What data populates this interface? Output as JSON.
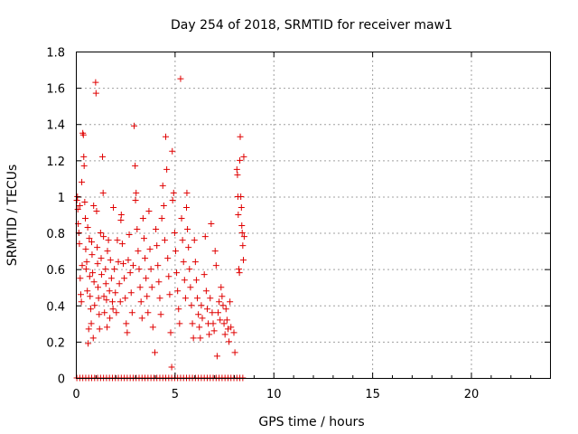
{
  "chart_data": {
    "type": "scatter",
    "title": "Day 254 of 2018, SRMTID for receiver maw1",
    "xlabel": "GPS time / hours",
    "ylabel": "SRMTID / TECUs",
    "xlim": [
      0,
      24
    ],
    "ylim": [
      0,
      1.8
    ],
    "x_ticks": [
      0,
      5,
      10,
      15,
      20
    ],
    "y_ticks": [
      0,
      0.2,
      0.4,
      0.6,
      0.8,
      1,
      1.2,
      1.4,
      1.6,
      1.8
    ],
    "x_tick_labels": [
      "0",
      "5",
      "10",
      "15",
      "20"
    ],
    "y_tick_labels": [
      "0",
      "0.2",
      "0.4",
      "0.6",
      "0.8",
      "1",
      "1.2",
      "1.4",
      "1.6",
      "1.8"
    ],
    "grid": true,
    "marker": "+",
    "series": [
      {
        "name": "SRMTID",
        "color": "#e00000",
        "points": [
          [
            0.05,
            0.98
          ],
          [
            0.08,
            1.0
          ],
          [
            0.1,
            0.93
          ],
          [
            0.12,
            0.85
          ],
          [
            0.15,
            0.8
          ],
          [
            0.18,
            0.74
          ],
          [
            0.2,
            0.95
          ],
          [
            0.22,
            0.55
          ],
          [
            0.25,
            0.46
          ],
          [
            0.28,
            0.42
          ],
          [
            0.3,
            1.08
          ],
          [
            0.32,
            0.62
          ],
          [
            0.35,
            1.35
          ],
          [
            0.38,
            1.34
          ],
          [
            0.4,
            1.22
          ],
          [
            0.42,
            1.17
          ],
          [
            0.45,
            0.97
          ],
          [
            0.48,
            0.88
          ],
          [
            0.5,
            0.71
          ],
          [
            0.52,
            0.6
          ],
          [
            0.55,
            0.64
          ],
          [
            0.58,
            0.48
          ],
          [
            0.6,
            0.83
          ],
          [
            0.62,
            0.19
          ],
          [
            0.65,
            0.27
          ],
          [
            0.68,
            0.77
          ],
          [
            0.7,
            0.56
          ],
          [
            0.72,
            0.45
          ],
          [
            0.75,
            0.38
          ],
          [
            0.78,
            0.3
          ],
          [
            0.8,
            0.75
          ],
          [
            0.82,
            0.68
          ],
          [
            0.85,
            0.58
          ],
          [
            0.88,
            0.22
          ],
          [
            0.9,
            0.95
          ],
          [
            0.92,
            0.53
          ],
          [
            0.95,
            0.4
          ],
          [
            1.0,
            1.63
          ],
          [
            1.02,
            1.57
          ],
          [
            1.05,
            0.92
          ],
          [
            1.08,
            0.72
          ],
          [
            1.1,
            0.63
          ],
          [
            1.12,
            0.5
          ],
          [
            1.15,
            0.44
          ],
          [
            1.18,
            0.35
          ],
          [
            1.2,
            0.27
          ],
          [
            1.25,
            0.8
          ],
          [
            1.28,
            0.66
          ],
          [
            1.3,
            0.57
          ],
          [
            1.35,
            1.22
          ],
          [
            1.38,
            1.02
          ],
          [
            1.4,
            0.78
          ],
          [
            1.42,
            0.45
          ],
          [
            1.45,
            0.36
          ],
          [
            1.5,
            0.6
          ],
          [
            1.52,
            0.52
          ],
          [
            1.55,
            0.43
          ],
          [
            1.58,
            0.28
          ],
          [
            1.6,
            0.7
          ],
          [
            1.65,
            0.76
          ],
          [
            1.7,
            0.48
          ],
          [
            1.72,
            0.33
          ],
          [
            1.75,
            0.65
          ],
          [
            1.8,
            0.55
          ],
          [
            1.85,
            0.42
          ],
          [
            1.88,
            0.38
          ],
          [
            1.9,
            0.94
          ],
          [
            1.95,
            0.6
          ],
          [
            2.0,
            0.47
          ],
          [
            2.05,
            0.36
          ],
          [
            2.1,
            0.76
          ],
          [
            2.15,
            0.64
          ],
          [
            2.2,
            0.52
          ],
          [
            2.25,
            0.42
          ],
          [
            2.28,
            0.87
          ],
          [
            2.3,
            0.9
          ],
          [
            2.35,
            0.74
          ],
          [
            2.4,
            0.63
          ],
          [
            2.45,
            0.55
          ],
          [
            2.5,
            0.44
          ],
          [
            2.55,
            0.3
          ],
          [
            2.6,
            0.25
          ],
          [
            2.65,
            0.65
          ],
          [
            2.7,
            0.79
          ],
          [
            2.75,
            0.58
          ],
          [
            2.8,
            0.47
          ],
          [
            2.85,
            0.36
          ],
          [
            2.9,
            0.62
          ],
          [
            2.95,
            1.39
          ],
          [
            3.0,
            1.17
          ],
          [
            3.02,
            0.98
          ],
          [
            3.05,
            1.02
          ],
          [
            3.1,
            0.82
          ],
          [
            3.15,
            0.7
          ],
          [
            3.2,
            0.6
          ],
          [
            3.25,
            0.5
          ],
          [
            3.3,
            0.42
          ],
          [
            3.35,
            0.33
          ],
          [
            3.4,
            0.88
          ],
          [
            3.45,
            0.77
          ],
          [
            3.5,
            0.66
          ],
          [
            3.55,
            0.55
          ],
          [
            3.6,
            0.45
          ],
          [
            3.65,
            0.36
          ],
          [
            3.7,
            0.92
          ],
          [
            3.75,
            0.71
          ],
          [
            3.8,
            0.6
          ],
          [
            3.85,
            0.5
          ],
          [
            3.9,
            0.28
          ],
          [
            4.0,
            0.14
          ],
          [
            4.05,
            0.82
          ],
          [
            4.1,
            0.73
          ],
          [
            4.15,
            0.62
          ],
          [
            4.2,
            0.53
          ],
          [
            4.25,
            0.44
          ],
          [
            4.3,
            0.35
          ],
          [
            4.35,
            0.88
          ],
          [
            4.4,
            1.06
          ],
          [
            4.45,
            0.95
          ],
          [
            4.5,
            0.76
          ],
          [
            4.55,
            1.33
          ],
          [
            4.6,
            1.15
          ],
          [
            4.65,
            0.66
          ],
          [
            4.7,
            0.56
          ],
          [
            4.75,
            0.46
          ],
          [
            4.8,
            0.25
          ],
          [
            4.85,
            0.06
          ],
          [
            4.88,
            1.25
          ],
          [
            4.9,
            0.98
          ],
          [
            4.95,
            1.02
          ],
          [
            5.0,
            0.8
          ],
          [
            5.05,
            0.7
          ],
          [
            5.1,
            0.58
          ],
          [
            5.15,
            0.48
          ],
          [
            5.2,
            0.38
          ],
          [
            5.25,
            0.3
          ],
          [
            5.3,
            1.65
          ],
          [
            5.35,
            0.88
          ],
          [
            5.4,
            0.76
          ],
          [
            5.45,
            0.64
          ],
          [
            5.5,
            0.54
          ],
          [
            5.55,
            0.44
          ],
          [
            5.6,
            0.94
          ],
          [
            5.62,
            1.02
          ],
          [
            5.65,
            0.82
          ],
          [
            5.7,
            0.72
          ],
          [
            5.75,
            0.6
          ],
          [
            5.8,
            0.5
          ],
          [
            5.85,
            0.4
          ],
          [
            5.9,
            0.3
          ],
          [
            5.95,
            0.22
          ],
          [
            6.0,
            0.76
          ],
          [
            6.05,
            0.64
          ],
          [
            6.1,
            0.54
          ],
          [
            6.15,
            0.44
          ],
          [
            6.2,
            0.35
          ],
          [
            6.25,
            0.28
          ],
          [
            6.3,
            0.22
          ],
          [
            6.35,
            0.4
          ],
          [
            6.4,
            0.33
          ],
          [
            6.5,
            0.57
          ],
          [
            6.55,
            0.78
          ],
          [
            6.6,
            0.48
          ],
          [
            6.65,
            0.38
          ],
          [
            6.7,
            0.3
          ],
          [
            6.75,
            0.24
          ],
          [
            6.8,
            0.44
          ],
          [
            6.85,
            0.85
          ],
          [
            6.9,
            0.36
          ],
          [
            6.95,
            0.3
          ],
          [
            7.0,
            0.26
          ],
          [
            7.05,
            0.7
          ],
          [
            7.1,
            0.62
          ],
          [
            7.15,
            0.12
          ],
          [
            7.2,
            0.36
          ],
          [
            7.25,
            0.42
          ],
          [
            7.3,
            0.32
          ],
          [
            7.35,
            0.5
          ],
          [
            7.4,
            0.45
          ],
          [
            7.45,
            0.4
          ],
          [
            7.5,
            0.3
          ],
          [
            7.55,
            0.24
          ],
          [
            7.6,
            0.38
          ],
          [
            7.65,
            0.32
          ],
          [
            7.7,
            0.27
          ],
          [
            7.75,
            0.2
          ],
          [
            7.8,
            0.42
          ],
          [
            7.85,
            0.28
          ],
          [
            8.0,
            0.25
          ],
          [
            8.05,
            0.14
          ],
          [
            8.15,
            1.15
          ],
          [
            8.18,
            1.12
          ],
          [
            8.2,
            1.0
          ],
          [
            8.22,
            0.9
          ],
          [
            8.25,
            0.6
          ],
          [
            8.28,
            0.58
          ],
          [
            8.3,
            1.2
          ],
          [
            8.32,
            1.33
          ],
          [
            8.35,
            1.0
          ],
          [
            8.38,
            0.94
          ],
          [
            8.4,
            0.84
          ],
          [
            8.42,
            0.8
          ],
          [
            8.45,
            0.73
          ],
          [
            8.48,
            0.65
          ],
          [
            8.5,
            1.22
          ],
          [
            8.52,
            0.78
          ]
        ],
        "zero_points": [
          0.05,
          0.2,
          0.35,
          0.5,
          0.65,
          0.8,
          0.95,
          1.1,
          1.25,
          1.4,
          1.55,
          1.7,
          1.85,
          2.0,
          2.15,
          2.3,
          2.45,
          2.6,
          2.75,
          2.9,
          3.05,
          3.2,
          3.35,
          3.5,
          3.65,
          3.8,
          3.95,
          4.1,
          4.25,
          4.4,
          4.55,
          4.7,
          4.85,
          5.0,
          5.15,
          5.3,
          5.45,
          5.6,
          5.75,
          5.9,
          6.05,
          6.2,
          6.35,
          6.5,
          6.65,
          6.8,
          6.95,
          7.1,
          7.25,
          7.4,
          7.55,
          7.7,
          7.85,
          8.0,
          8.15,
          8.3,
          8.45
        ]
      }
    ]
  }
}
